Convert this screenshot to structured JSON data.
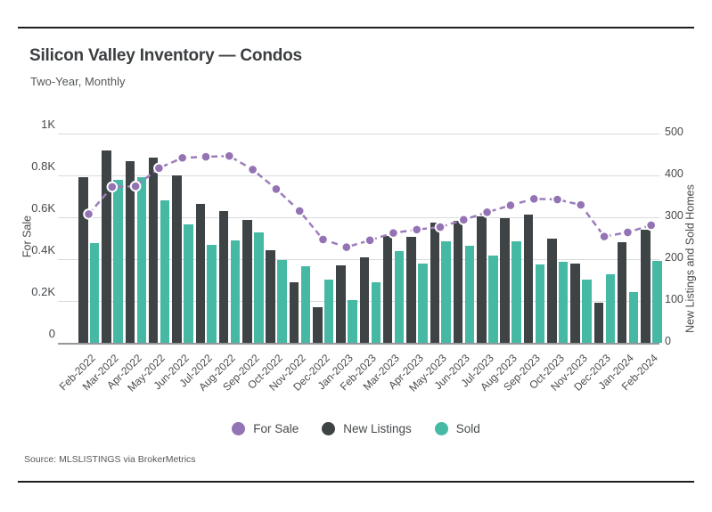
{
  "header": {
    "title": "Silicon Valley Inventory — Condos",
    "subtitle": "Two-Year, Monthly"
  },
  "footer": {
    "source": "Source:  MLSLISTINGS via BrokerMetrics"
  },
  "colors": {
    "for_sale": "#9373b3",
    "for_sale_line": "#9b7dbc",
    "new_listings": "#3e4345",
    "sold": "#46b9a5",
    "grid": "#d9dadb"
  },
  "chart_data": {
    "type": "bar",
    "subtype": "combo-bar-line",
    "title": "Silicon Valley Inventory — Condos",
    "subtitle": "Two-Year, Monthly",
    "categories": [
      "Feb-2022",
      "Mar-2022",
      "Apr-2022",
      "May-2022",
      "Jun-2022",
      "Jul-2022",
      "Aug-2022",
      "Sep-2022",
      "Oct-2022",
      "Nov-2022",
      "Dec-2022",
      "Jan-2023",
      "Feb-2023",
      "Mar-2023",
      "Apr-2023",
      "May-2023",
      "Jun-2023",
      "Jul-2023",
      "Aug-2023",
      "Sep-2023",
      "Oct-2023",
      "Nov-2023",
      "Dec-2023",
      "Jan-2024",
      "Feb-2024"
    ],
    "series": [
      {
        "name": "For Sale",
        "type": "line",
        "axis": "left",
        "values": [
          615,
          745,
          748,
          835,
          884,
          889,
          893,
          828,
          735,
          630,
          494,
          457,
          490,
          525,
          541,
          553,
          588,
          624,
          657,
          688,
          685,
          659,
          508,
          528,
          562
        ]
      },
      {
        "name": "New Listings",
        "type": "bar",
        "axis": "right",
        "values": [
          395,
          460,
          433,
          442,
          400,
          331,
          314,
          293,
          221,
          145,
          86,
          186,
          204,
          255,
          253,
          287,
          291,
          303,
          298,
          307,
          248,
          189,
          96,
          241,
          271
        ]
      },
      {
        "name": "Sold",
        "type": "bar",
        "axis": "right",
        "values": [
          239,
          390,
          395,
          341,
          284,
          234,
          245,
          264,
          197,
          182,
          152,
          103,
          145,
          220,
          190,
          242,
          232,
          209,
          242,
          188,
          194,
          152,
          163,
          122,
          196
        ]
      }
    ],
    "left_axis": {
      "label": "For Sale",
      "min": 0,
      "max": 1000,
      "tick_values": [
        0,
        200,
        400,
        600,
        800,
        1000
      ],
      "tick_labels": [
        "0",
        "0.2K",
        "0.4K",
        "0.6K",
        "0.8K",
        "1K"
      ]
    },
    "right_axis": {
      "label": "New Listings and Sold Homes",
      "min": 0,
      "max": 500,
      "tick_values": [
        0,
        100,
        200,
        300,
        400,
        500
      ],
      "tick_labels": [
        "0",
        "100",
        "200",
        "300",
        "400",
        "500"
      ]
    },
    "legend": [
      "For Sale",
      "New Listings",
      "Sold"
    ],
    "legend_position": "bottom",
    "grid": true
  }
}
